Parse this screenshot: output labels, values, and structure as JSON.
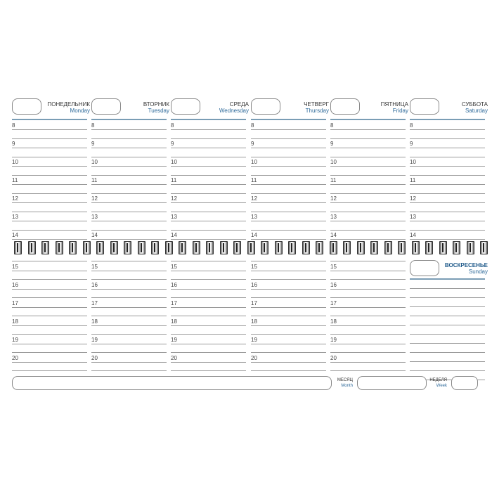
{
  "days": [
    {
      "ru": "Понедельник",
      "en": "Monday"
    },
    {
      "ru": "Вторник",
      "en": "Tuesday"
    },
    {
      "ru": "Среда",
      "en": "Wednesday"
    },
    {
      "ru": "Четверг",
      "en": "Thursday"
    },
    {
      "ru": "Пятница",
      "en": "Friday"
    },
    {
      "ru": "Суббота",
      "en": "Saturday"
    }
  ],
  "sunday": {
    "ru": "Воскресенье",
    "en": "Sunday"
  },
  "hours_top": [
    "8",
    "9",
    "10",
    "11",
    "12",
    "13",
    "14"
  ],
  "hours_bottom": [
    "15",
    "16",
    "17",
    "18",
    "19",
    "20"
  ],
  "footer": {
    "month_ru": "Месяц",
    "month_en": "Month",
    "week_ru": "Неделя",
    "week_en": "Week"
  },
  "colors": {
    "accent": "#2e6a9a",
    "line": "#9a9a9a"
  }
}
